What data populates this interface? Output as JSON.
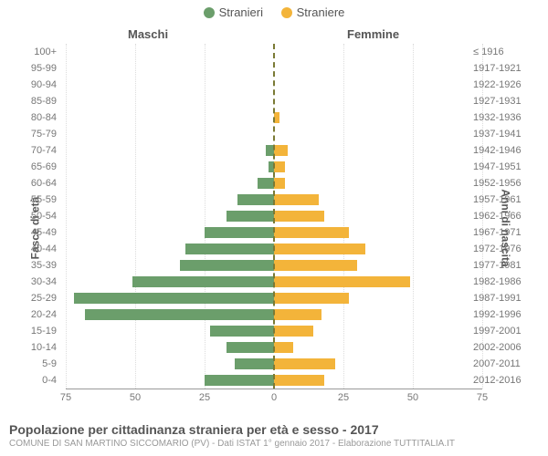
{
  "chart": {
    "type": "population-pyramid",
    "legend": {
      "male": {
        "label": "Stranieri",
        "color": "#6b9e6b"
      },
      "female": {
        "label": "Straniere",
        "color": "#f3b43a"
      }
    },
    "side_titles": {
      "male": "Maschi",
      "female": "Femmine"
    },
    "y_axis_titles": {
      "left": "Fasce di età",
      "right": "Anni di nascita"
    },
    "x_axis": {
      "max": 75,
      "ticks": [
        0,
        25,
        50,
        75
      ],
      "grid_color": "#dcdcdc",
      "baseline_color": "#999999"
    },
    "center_line_color": "#7a7a35",
    "rows": [
      {
        "age": "100+",
        "birth": "≤ 1916",
        "m": 0,
        "f": 0
      },
      {
        "age": "95-99",
        "birth": "1917-1921",
        "m": 0,
        "f": 0
      },
      {
        "age": "90-94",
        "birth": "1922-1926",
        "m": 0,
        "f": 0
      },
      {
        "age": "85-89",
        "birth": "1927-1931",
        "m": 0,
        "f": 0
      },
      {
        "age": "80-84",
        "birth": "1932-1936",
        "m": 0,
        "f": 2
      },
      {
        "age": "75-79",
        "birth": "1937-1941",
        "m": 0,
        "f": 0
      },
      {
        "age": "70-74",
        "birth": "1942-1946",
        "m": 3,
        "f": 5
      },
      {
        "age": "65-69",
        "birth": "1947-1951",
        "m": 2,
        "f": 4
      },
      {
        "age": "60-64",
        "birth": "1952-1956",
        "m": 6,
        "f": 4
      },
      {
        "age": "55-59",
        "birth": "1957-1961",
        "m": 13,
        "f": 16
      },
      {
        "age": "50-54",
        "birth": "1962-1966",
        "m": 17,
        "f": 18
      },
      {
        "age": "45-49",
        "birth": "1967-1971",
        "m": 25,
        "f": 27
      },
      {
        "age": "40-44",
        "birth": "1972-1976",
        "m": 32,
        "f": 33
      },
      {
        "age": "35-39",
        "birth": "1977-1981",
        "m": 34,
        "f": 30
      },
      {
        "age": "30-34",
        "birth": "1982-1986",
        "m": 51,
        "f": 49
      },
      {
        "age": "25-29",
        "birth": "1987-1991",
        "m": 72,
        "f": 27
      },
      {
        "age": "20-24",
        "birth": "1992-1996",
        "m": 68,
        "f": 17
      },
      {
        "age": "15-19",
        "birth": "1997-2001",
        "m": 23,
        "f": 14
      },
      {
        "age": "10-14",
        "birth": "2002-2006",
        "m": 17,
        "f": 7
      },
      {
        "age": "5-9",
        "birth": "2007-2011",
        "m": 14,
        "f": 22
      },
      {
        "age": "0-4",
        "birth": "2012-2016",
        "m": 25,
        "f": 18
      }
    ],
    "label_fontsize": 11,
    "label_color": "#777777",
    "title_color": "#555555",
    "background_color": "#ffffff"
  },
  "caption": {
    "title": "Popolazione per cittadinanza straniera per età e sesso - 2017",
    "sub": "COMUNE DI SAN MARTINO SICCOMARIO (PV) - Dati ISTAT 1° gennaio 2017 - Elaborazione TUTTITALIA.IT"
  }
}
